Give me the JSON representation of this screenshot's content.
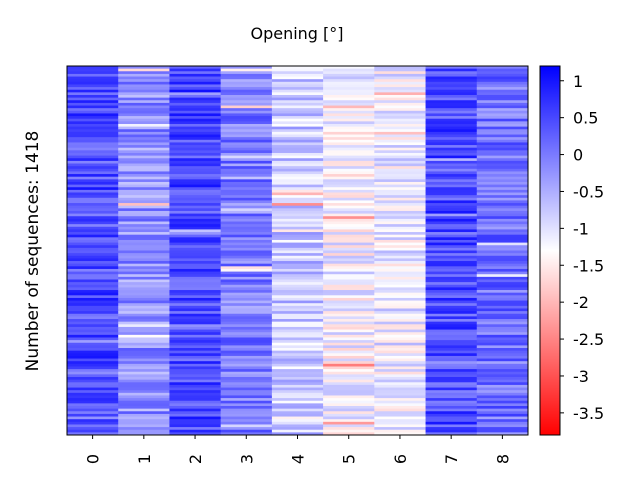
{
  "chart_data": {
    "type": "heatmap",
    "title": "Opening [°]",
    "xlabel": "",
    "ylabel": "Number of sequences: 1418",
    "x_categories": [
      "0",
      "1",
      "2",
      "3",
      "4",
      "5",
      "6",
      "7",
      "8"
    ],
    "row_count": 1418,
    "colorbar": {
      "min": -3.8,
      "max": 1.2,
      "ticks": [
        "1",
        "0.5",
        "0",
        "-0.5",
        "-1",
        "-1.5",
        "-2",
        "-2.5",
        "-3",
        "-3.5"
      ],
      "tick_values": [
        1,
        0.5,
        0,
        -0.5,
        -1,
        -1.5,
        -2,
        -2.5,
        -3,
        -3.5
      ],
      "colors": {
        "low": "#ff0000",
        "mid": "#ffffff",
        "high": "#0000ff"
      },
      "mid_value": -1.3
    },
    "column_means": [
      0.45,
      -0.2,
      0.5,
      0.0,
      -0.75,
      -1.2,
      -1.1,
      0.45,
      0.1
    ]
  }
}
